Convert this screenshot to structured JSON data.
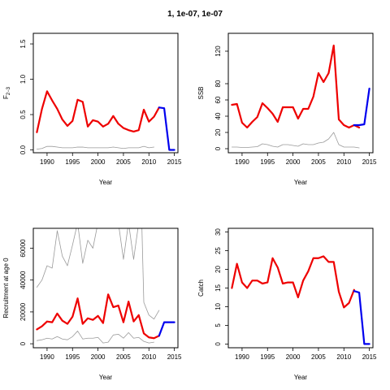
{
  "figure_title": "1, 1e-07, 1e-07",
  "colors": {
    "fit": "#ee0000",
    "forecast": "#0000ee",
    "ci": "#9a9a9a",
    "axis": "#000000"
  },
  "chart_data": [
    {
      "id": "p1",
      "type": "line",
      "xlabel": "Year",
      "ylabel_main": "F",
      "ylabel_sub": "2−3",
      "xlim": [
        1987.3,
        2015.7
      ],
      "ylim": [
        -0.04,
        1.65
      ],
      "xticks": [
        1990,
        1995,
        2000,
        2005,
        2010,
        2015
      ],
      "xtick_labels": [
        "1990",
        "1995",
        "2000",
        "2005",
        "2010",
        "2015"
      ],
      "yticks": [
        0,
        0.5,
        1,
        1.5
      ],
      "ytick_labels": [
        "0.0",
        "0.5",
        "1.0",
        "1.5"
      ],
      "series": [
        {
          "role": "ci",
          "x": [
            1988,
            1989,
            1990,
            1991,
            1992,
            1993,
            1994,
            1995,
            1996,
            1997,
            1998,
            1999,
            2000,
            2001,
            2002,
            2003,
            2004,
            2005,
            2006,
            2007,
            2008,
            2009,
            2010,
            2011
          ],
          "y": [
            0.01,
            0.02,
            0.05,
            0.05,
            0.04,
            0.03,
            0.03,
            0.03,
            0.04,
            0.04,
            0.03,
            0.03,
            0.03,
            0.03,
            0.03,
            0.04,
            0.03,
            0.02,
            0.03,
            0.03,
            0.03,
            0.05,
            0.03,
            0.04
          ]
        },
        {
          "role": "fit",
          "x": [
            1988,
            1989,
            1990,
            1991,
            1992,
            1993,
            1994,
            1995,
            1996,
            1997,
            1998,
            1999,
            2000,
            2001,
            2002,
            2003,
            2004,
            2005,
            2006,
            2007,
            2008,
            2009,
            2010,
            2011,
            2012
          ],
          "y": [
            0.25,
            0.58,
            0.83,
            0.7,
            0.58,
            0.43,
            0.34,
            0.41,
            0.71,
            0.68,
            0.33,
            0.42,
            0.4,
            0.33,
            0.37,
            0.48,
            0.37,
            0.31,
            0.28,
            0.26,
            0.28,
            0.57,
            0.4,
            0.47,
            0.6
          ]
        },
        {
          "role": "forecast",
          "x": [
            2012,
            2013,
            2014,
            2015
          ],
          "y": [
            0.6,
            0.59,
            0,
            0
          ]
        }
      ]
    },
    {
      "id": "p2",
      "type": "line",
      "xlabel": "Year",
      "ylabel_main": "SSB",
      "xlim": [
        1987.3,
        2015.7
      ],
      "ylim": [
        -5,
        142
      ],
      "xticks": [
        1990,
        1995,
        2000,
        2005,
        2010,
        2015
      ],
      "xtick_labels": [
        "1990",
        "1995",
        "2000",
        "2005",
        "2010",
        "2015"
      ],
      "yticks": [
        0,
        20,
        40,
        60,
        80,
        120
      ],
      "ytick_labels": [
        "0",
        "20",
        "40",
        "60",
        "80",
        "120"
      ],
      "series": [
        {
          "role": "ci",
          "x": [
            1988,
            1989,
            1990,
            1991,
            1992,
            1993,
            1994,
            1995,
            1996,
            1997,
            1998,
            1999,
            2000,
            2001,
            2002,
            2003,
            2004,
            2005,
            2006,
            2007,
            2008,
            2009,
            2010,
            2011,
            2012,
            2013
          ],
          "y": [
            2,
            2,
            1.5,
            1.5,
            2,
            2.5,
            6,
            5,
            3,
            2,
            5,
            5,
            4,
            3,
            6,
            5,
            5,
            7,
            8,
            12,
            20,
            5,
            2,
            2,
            2,
            1
          ]
        },
        {
          "role": "fit",
          "x": [
            1988,
            1989,
            1990,
            1991,
            1992,
            1993,
            1994,
            1995,
            1996,
            1997,
            1998,
            1999,
            2000,
            2001,
            2002,
            2003,
            2004,
            2005,
            2006,
            2007,
            2008,
            2009,
            2010,
            2011,
            2012,
            2013
          ],
          "y": [
            54,
            55,
            32,
            26,
            33,
            39,
            56,
            50,
            43,
            33,
            51,
            51,
            51,
            37,
            49,
            49,
            64,
            93,
            82,
            93,
            127,
            36,
            29,
            26,
            29,
            26
          ]
        },
        {
          "role": "forecast",
          "x": [
            2012,
            2013,
            2014,
            2015
          ],
          "y": [
            29,
            29,
            30,
            74
          ]
        }
      ]
    },
    {
      "id": "p3",
      "type": "line",
      "xlabel": "Year",
      "ylabel_main": "Recruitment at age 0",
      "xlim": [
        1987.3,
        2015.7
      ],
      "ylim": [
        -2500,
        72500
      ],
      "xticks": [
        1990,
        1995,
        2000,
        2005,
        2010,
        2015
      ],
      "xtick_labels": [
        "1990",
        "1995",
        "2000",
        "2005",
        "2010",
        "2015"
      ],
      "yticks": [
        0,
        20000,
        40000,
        60000
      ],
      "ytick_labels": [
        "0",
        "20000",
        "40000",
        "60000"
      ],
      "series": [
        {
          "role": "ci",
          "x": [
            1988,
            1989,
            1990,
            1991,
            1992,
            1993,
            1994,
            1995,
            1996,
            1997,
            1998,
            1999,
            2000,
            2001,
            2002,
            2003,
            2004,
            2005,
            2006,
            2007,
            2008,
            2009,
            2010,
            2011
          ],
          "y": [
            2000,
            2500,
            3500,
            3000,
            4500,
            3000,
            2500,
            4500,
            8000,
            3000,
            3500,
            3500,
            4000,
            500,
            1000,
            5500,
            6000,
            3500,
            7000,
            3500,
            4000,
            1500,
            500,
            1000
          ]
        },
        {
          "role": "ci",
          "x": [
            1988,
            1989,
            1990,
            1991,
            1992,
            1993,
            1994,
            1995,
            1996,
            1997,
            1998,
            1999,
            2000
          ],
          "y": [
            35500,
            40000,
            49000,
            47500,
            71000,
            55000,
            49000,
            62000,
            76000,
            50500,
            65000,
            60000,
            76000
          ]
        },
        {
          "role": "ci",
          "x": [
            2004,
            2005,
            2006,
            2007,
            2008
          ],
          "y": [
            76000,
            53000,
            76000,
            53000,
            76000
          ]
        },
        {
          "role": "ci",
          "x": [
            2008.6,
            2009,
            2010,
            2011,
            2012
          ],
          "y": [
            76000,
            26000,
            18000,
            15500,
            21000
          ]
        },
        {
          "role": "fit",
          "x": [
            1988,
            1989,
            1990,
            1991,
            1992,
            1993,
            1994,
            1995,
            1996,
            1997,
            1998,
            1999,
            2000,
            2001,
            2002,
            2003,
            2004,
            2005,
            2006,
            2007,
            2008,
            2009,
            2010,
            2011,
            2012
          ],
          "y": [
            9000,
            11000,
            14000,
            13500,
            19000,
            14500,
            12500,
            17000,
            28500,
            12500,
            16000,
            15000,
            17500,
            13000,
            31000,
            23000,
            24000,
            13500,
            26500,
            14000,
            18000,
            6500,
            4000,
            3500,
            5000
          ]
        },
        {
          "role": "forecast",
          "x": [
            2012,
            2013,
            2014,
            2015
          ],
          "y": [
            5000,
            13500,
            13500,
            13500
          ]
        }
      ]
    },
    {
      "id": "p4",
      "type": "line",
      "xlabel": "Year",
      "ylabel_main": "Catch",
      "xlim": [
        1987.3,
        2015.7
      ],
      "ylim": [
        -1,
        31
      ],
      "xticks": [
        1990,
        1995,
        2000,
        2005,
        2010,
        2015
      ],
      "xtick_labels": [
        "1990",
        "1995",
        "2000",
        "2005",
        "2010",
        "2015"
      ],
      "yticks": [
        0,
        5,
        10,
        15,
        20,
        25,
        30
      ],
      "ytick_labels": [
        "0",
        "5",
        "10",
        "15",
        "20",
        "25",
        "30"
      ],
      "series": [
        {
          "role": "fit",
          "x": [
            1988,
            1989,
            1990,
            1991,
            1992,
            1993,
            1994,
            1995,
            1996,
            1997,
            1998,
            1999,
            2000,
            2001,
            2002,
            2003,
            2004,
            2005,
            2006,
            2007,
            2008,
            2009,
            2010,
            2011,
            2012
          ],
          "y": [
            15,
            21.5,
            16.5,
            15,
            17,
            17,
            16.2,
            16.5,
            23,
            20.5,
            16.2,
            16.5,
            16.5,
            12.5,
            17,
            19.5,
            23,
            23,
            23.5,
            22,
            22,
            14,
            9.8,
            11,
            14.5
          ]
        },
        {
          "role": "forecast",
          "x": [
            2012,
            2013,
            2014,
            2015
          ],
          "y": [
            14.2,
            13.8,
            0,
            0
          ]
        }
      ]
    }
  ]
}
